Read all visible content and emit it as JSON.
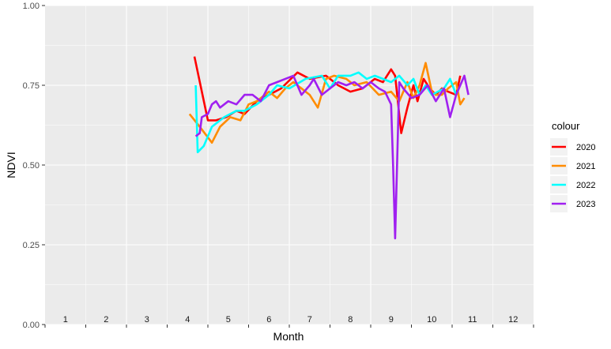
{
  "chart_data": {
    "type": "line",
    "title": "",
    "xlabel": "Month",
    "ylabel": "NDVI",
    "xlim": [
      0,
      12
    ],
    "ylim": [
      0,
      1
    ],
    "yticks": [
      "0.00",
      "0.25",
      "0.50",
      "0.75",
      "1.00"
    ],
    "month_labels": [
      "1",
      "2",
      "3",
      "4",
      "5",
      "6",
      "7",
      "8",
      "9",
      "10",
      "11",
      "12"
    ],
    "grid": true,
    "legend": {
      "title": "colour",
      "position": "right"
    },
    "series": [
      {
        "name": "2020",
        "color": "#ff0000",
        "x": [
          3.67,
          3.9,
          4.0,
          4.2,
          4.45,
          4.7,
          4.9,
          5.2,
          5.5,
          5.8,
          6.2,
          6.5,
          6.9,
          7.2,
          7.5,
          7.8,
          8.1,
          8.3,
          8.5,
          8.6,
          8.75,
          8.9,
          9.05,
          9.15,
          9.3,
          9.45,
          9.6,
          9.75,
          9.9,
          10.1,
          10.2
        ],
        "y": [
          0.84,
          0.7,
          0.64,
          0.64,
          0.65,
          0.67,
          0.66,
          0.7,
          0.72,
          0.74,
          0.79,
          0.77,
          0.78,
          0.75,
          0.73,
          0.74,
          0.77,
          0.76,
          0.8,
          0.78,
          0.6,
          0.68,
          0.75,
          0.7,
          0.77,
          0.74,
          0.72,
          0.74,
          0.73,
          0.72,
          0.78
        ]
      },
      {
        "name": "2021",
        "color": "#ff8c00",
        "x": [
          3.55,
          3.8,
          4.1,
          4.3,
          4.55,
          4.8,
          5.0,
          5.2,
          5.5,
          5.7,
          5.9,
          6.1,
          6.5,
          6.7,
          6.9,
          7.1,
          7.4,
          7.6,
          7.9,
          8.2,
          8.5,
          8.7,
          8.9,
          9.05,
          9.2,
          9.35,
          9.5,
          9.6,
          9.75,
          9.9,
          10.1,
          10.2,
          10.3
        ],
        "y": [
          0.66,
          0.62,
          0.57,
          0.62,
          0.65,
          0.64,
          0.69,
          0.7,
          0.73,
          0.71,
          0.74,
          0.76,
          0.72,
          0.68,
          0.77,
          0.78,
          0.77,
          0.75,
          0.76,
          0.72,
          0.73,
          0.7,
          0.76,
          0.71,
          0.75,
          0.82,
          0.73,
          0.72,
          0.72,
          0.74,
          0.76,
          0.69,
          0.71
        ]
      },
      {
        "name": "2022",
        "color": "#00ffff",
        "x": [
          3.7,
          3.75,
          3.9,
          4.1,
          4.4,
          4.7,
          4.9,
          5.2,
          5.5,
          5.7,
          6.0,
          6.4,
          6.8,
          7.0,
          7.2,
          7.5,
          7.7,
          7.9,
          8.1,
          8.3,
          8.5,
          8.7,
          8.9,
          9.05,
          9.2,
          9.35,
          9.5,
          9.65,
          9.8,
          9.95,
          10.1
        ],
        "y": [
          0.75,
          0.54,
          0.56,
          0.62,
          0.65,
          0.67,
          0.67,
          0.69,
          0.72,
          0.75,
          0.74,
          0.77,
          0.78,
          0.74,
          0.78,
          0.78,
          0.79,
          0.77,
          0.78,
          0.77,
          0.76,
          0.78,
          0.75,
          0.77,
          0.72,
          0.75,
          0.72,
          0.73,
          0.74,
          0.77,
          0.72
        ]
      },
      {
        "name": "2023",
        "color": "#a020f0",
        "x": [
          3.7,
          3.8,
          3.85,
          4.0,
          4.1,
          4.2,
          4.3,
          4.5,
          4.7,
          4.9,
          5.1,
          5.3,
          5.5,
          5.7,
          5.9,
          6.1,
          6.3,
          6.5,
          6.6,
          6.8,
          7.0,
          7.2,
          7.4,
          7.6,
          7.8,
          8.0,
          8.2,
          8.35,
          8.5,
          8.55,
          8.6,
          8.7,
          8.8,
          9.0,
          9.2,
          9.4,
          9.6,
          9.8,
          9.95,
          10.1,
          10.3,
          10.4
        ],
        "y": [
          0.59,
          0.6,
          0.65,
          0.66,
          0.69,
          0.7,
          0.68,
          0.7,
          0.69,
          0.72,
          0.72,
          0.7,
          0.75,
          0.76,
          0.77,
          0.78,
          0.72,
          0.75,
          0.77,
          0.72,
          0.74,
          0.76,
          0.75,
          0.76,
          0.74,
          0.76,
          0.74,
          0.73,
          0.69,
          0.5,
          0.27,
          0.76,
          0.74,
          0.71,
          0.72,
          0.75,
          0.7,
          0.74,
          0.65,
          0.72,
          0.78,
          0.72
        ]
      }
    ]
  }
}
